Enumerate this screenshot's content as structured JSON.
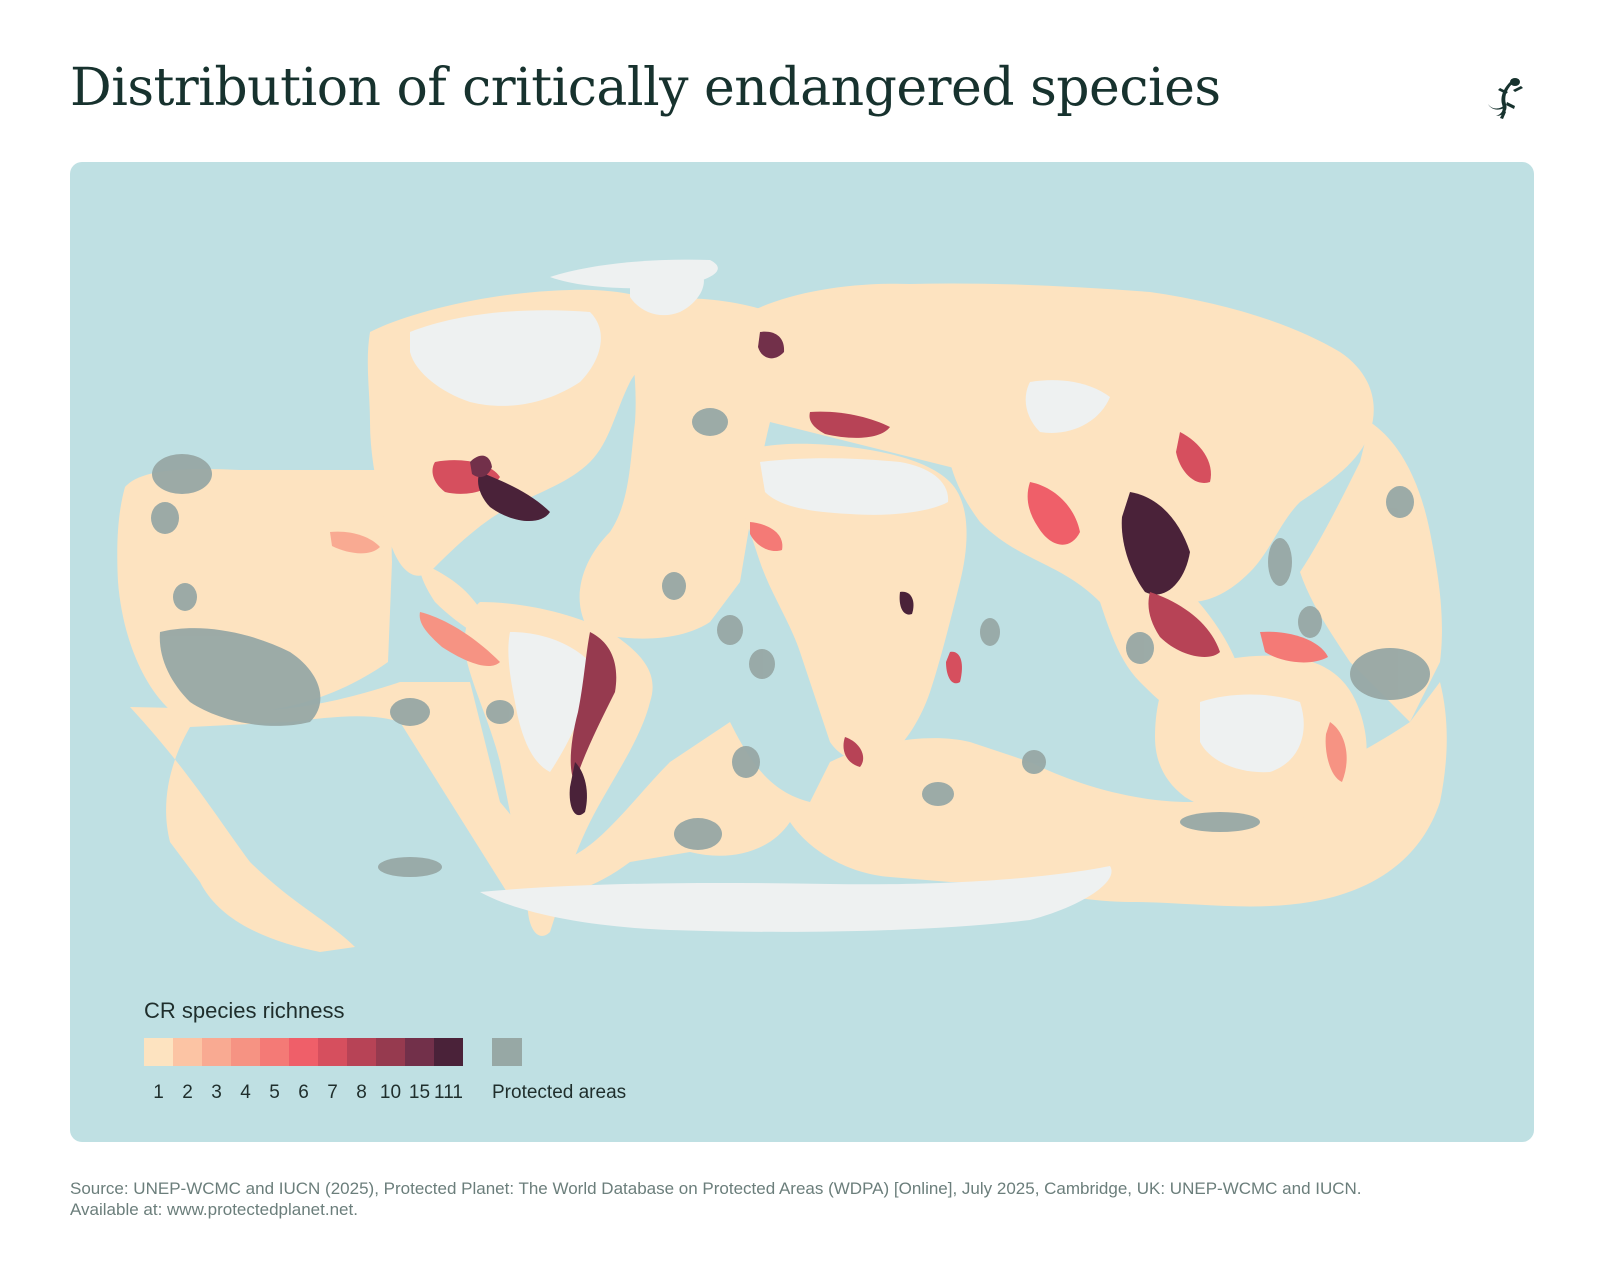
{
  "title": "Distribution of critically endangered species",
  "logo": {
    "icon": "gecko-logo-icon"
  },
  "colors": {
    "ocean": "#bfe0e3",
    "land_base": "#fde3c0",
    "no_data_land": "#eef1f1",
    "protected_areas": "#97a8a5"
  },
  "legend": {
    "title": "CR species richness",
    "classes": [
      {
        "label": "1",
        "color": "#fde3c0"
      },
      {
        "label": "2",
        "color": "#fcc4a4"
      },
      {
        "label": "3",
        "color": "#f9aa92"
      },
      {
        "label": "4",
        "color": "#f69383"
      },
      {
        "label": "5",
        "color": "#f47a76"
      },
      {
        "label": "6",
        "color": "#ef5f69"
      },
      {
        "label": "7",
        "color": "#d64f5e"
      },
      {
        "label": "8",
        "color": "#b74356"
      },
      {
        "label": "10",
        "color": "#963a4f"
      },
      {
        "label": "15",
        "color": "#72304a"
      },
      {
        "label": "111",
        "color": "#4a2239"
      }
    ],
    "protected_label": "Protected areas"
  },
  "source": {
    "line1": "Source: UNEP-WCMC and IUCN (2025), Protected Planet: The World Database on Protected Areas (WDPA) [Online], July 2025, Cambridge, UK: UNEP-WCMC and IUCN.",
    "line2": "Available at: www.protectedplanet.net."
  }
}
